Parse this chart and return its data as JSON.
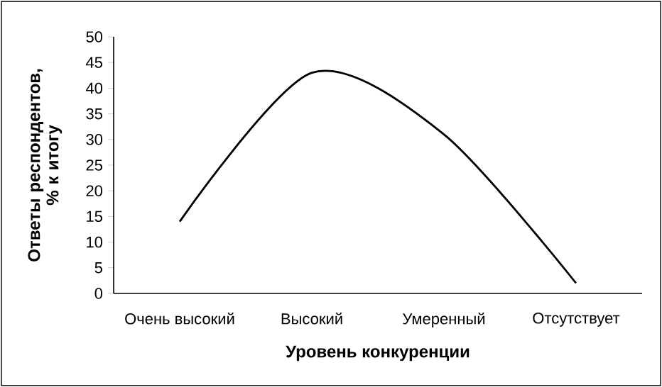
{
  "chart_data": {
    "type": "line",
    "xlabel": "Уровень конкуренции",
    "ylabel": "Ответы респондентов, % к итогу",
    "categories": [
      "Очень высокий",
      "Высокий",
      "Умеренный",
      "Отсутствует"
    ],
    "values": [
      14,
      43,
      31,
      2
    ],
    "color": "#000000",
    "line_style": "solid",
    "ylim": [
      0,
      50
    ],
    "yticks": [
      0,
      5,
      10,
      15,
      20,
      25,
      30,
      35,
      40,
      45,
      50
    ]
  }
}
